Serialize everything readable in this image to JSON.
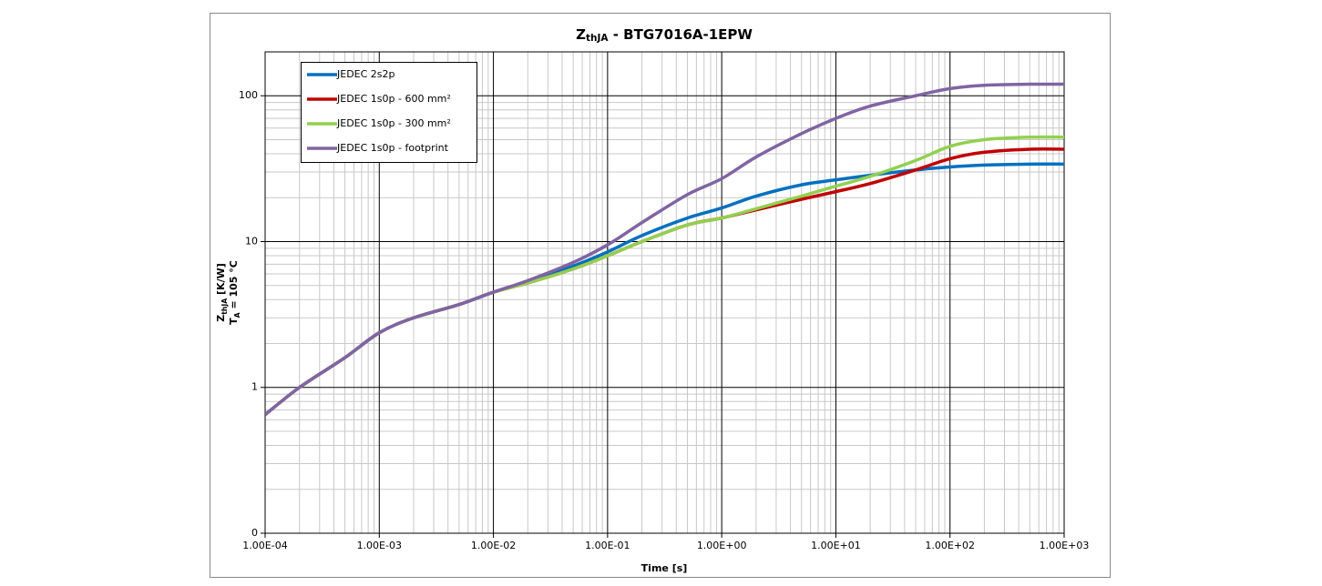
{
  "chart_data": {
    "type": "line",
    "title": [
      "Z",
      "thJA",
      " - BTG7016A-1EPW"
    ],
    "xlabel": "Time [s]",
    "ylabel": [
      [
        "Z",
        "thJA",
        " [K/W]"
      ],
      [
        "T",
        "A",
        " = 105 °C"
      ]
    ],
    "x": [
      0.0001,
      0.0002,
      0.0005,
      0.001,
      0.002,
      0.005,
      0.01,
      0.02,
      0.05,
      0.1,
      0.2,
      0.5,
      1,
      2,
      5,
      10,
      20,
      50,
      100,
      200,
      500,
      1000
    ],
    "series": [
      {
        "name": "JEDEC 2s2p",
        "color": "#0070c0",
        "values": [
          0.65,
          1.0,
          1.6,
          2.37,
          3.0,
          3.7,
          4.5,
          5.3,
          6.8,
          8.5,
          11,
          14.5,
          17,
          20.5,
          24.5,
          26.5,
          28.5,
          31,
          32.5,
          33.5,
          34,
          34
        ]
      },
      {
        "name": "JEDEC 1s0p - 600 mm²",
        "color": "#c00000",
        "values": [
          0.65,
          1.0,
          1.6,
          2.37,
          3.0,
          3.7,
          4.5,
          5.2,
          6.5,
          8.0,
          10,
          13,
          14.5,
          16.5,
          19.5,
          22,
          25,
          31,
          37,
          41,
          43,
          43
        ]
      },
      {
        "name": "JEDEC 1s0p - 300 mm²",
        "color": "#92d050",
        "values": [
          0.65,
          1.0,
          1.6,
          2.37,
          3.0,
          3.7,
          4.5,
          5.2,
          6.5,
          8.0,
          10,
          13,
          14.5,
          16.8,
          20.5,
          24,
          28,
          36,
          45,
          50,
          52,
          52
        ]
      },
      {
        "name": "JEDEC 1s0p - footprint",
        "color": "#8064a2",
        "values": [
          0.65,
          1.0,
          1.6,
          2.37,
          3.0,
          3.7,
          4.5,
          5.4,
          7.2,
          9.5,
          13.5,
          21,
          27,
          38,
          55,
          70,
          85,
          100,
          112,
          118,
          120,
          120
        ]
      }
    ],
    "xscale": "log",
    "yscale": "log",
    "xlim": [
      0.0001,
      1000
    ],
    "ylim": [
      0.1,
      200
    ],
    "xticks": [
      {
        "value": 0.0001,
        "label": "1.00E-04"
      },
      {
        "value": 0.001,
        "label": "1.00E-03"
      },
      {
        "value": 0.01,
        "label": "1.00E-02"
      },
      {
        "value": 0.1,
        "label": "1.00E-01"
      },
      {
        "value": 1,
        "label": "1.00E+00"
      },
      {
        "value": 10,
        "label": "1.00E+01"
      },
      {
        "value": 100,
        "label": "1.00E+02"
      },
      {
        "value": 1000,
        "label": "1.00E+03"
      }
    ],
    "yticks": [
      {
        "value": 0.1,
        "label": "0"
      },
      1,
      10,
      100
    ],
    "grid": true,
    "minor_grid": true,
    "legend": "upper left"
  }
}
